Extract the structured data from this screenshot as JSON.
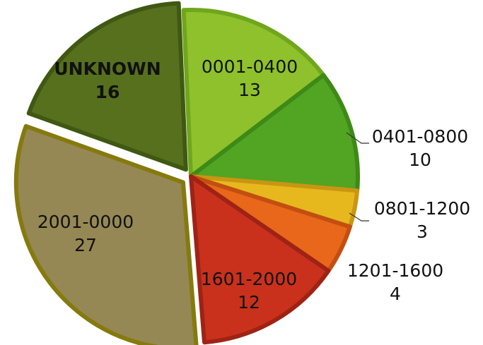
{
  "chart_data": {
    "type": "pie",
    "title": "",
    "slices": [
      {
        "label": "0001-0400",
        "value": 13,
        "fill": "#8ec12b",
        "stroke": "#6fa61c"
      },
      {
        "label": "0401-0800",
        "value": 10,
        "fill": "#52a423",
        "stroke": "#3d8a17"
      },
      {
        "label": "0801-1200",
        "value": 3,
        "fill": "#e7b81e",
        "stroke": "#c99612"
      },
      {
        "label": "1201-1600",
        "value": 4,
        "fill": "#e8671a",
        "stroke": "#c24f10"
      },
      {
        "label": "1601-2000",
        "value": 12,
        "fill": "#c9311d",
        "stroke": "#9e2314"
      },
      {
        "label": "2001-0000",
        "value": 27,
        "fill": "#958855",
        "stroke": "#857a0c"
      },
      {
        "label": "UNKNOWN",
        "value": 16,
        "fill": "#57701e",
        "stroke": "#3f5812"
      }
    ]
  }
}
